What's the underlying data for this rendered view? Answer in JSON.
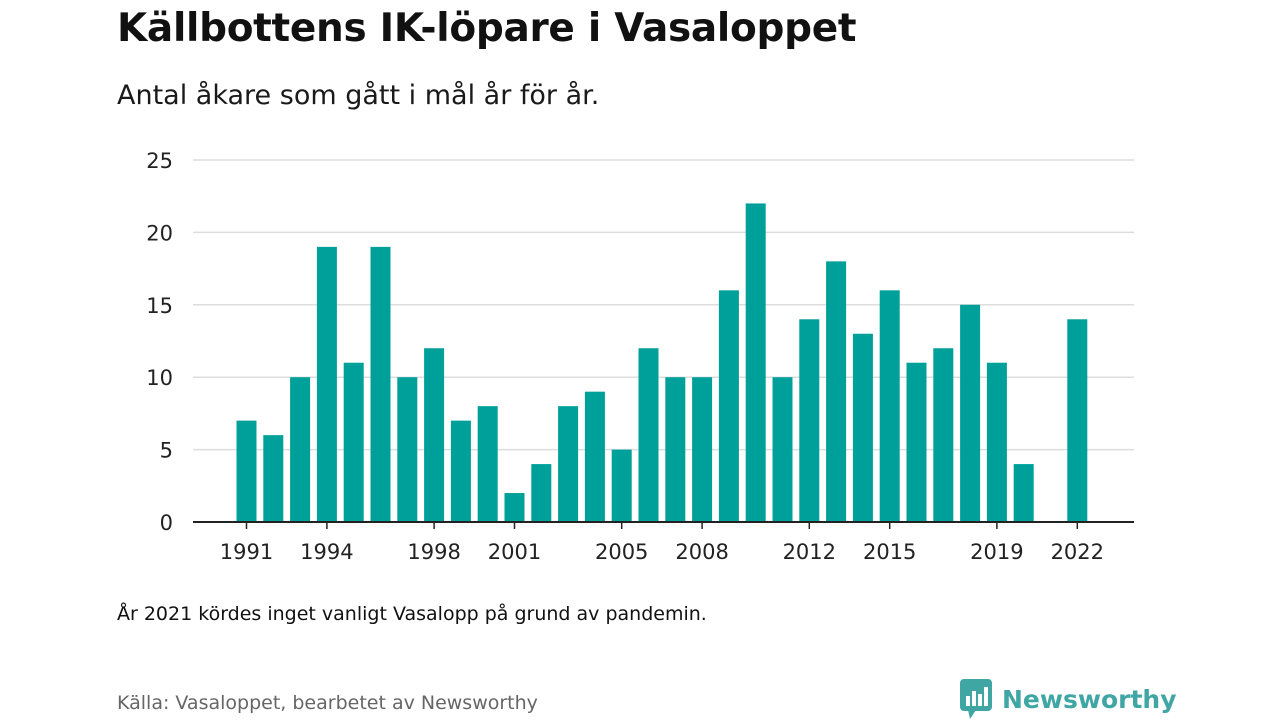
{
  "header": {
    "title": "Källbottens IK-löpare i Vasaloppet",
    "subtitle": "Antal åkare som gått i mål år för år."
  },
  "chart_data": {
    "type": "bar",
    "x": [
      1991,
      1992,
      1993,
      1994,
      1995,
      1996,
      1997,
      1998,
      1999,
      2000,
      2001,
      2002,
      2003,
      2004,
      2005,
      2006,
      2007,
      2008,
      2009,
      2010,
      2011,
      2012,
      2013,
      2014,
      2015,
      2016,
      2017,
      2018,
      2019,
      2020,
      2021,
      2022
    ],
    "values": [
      7,
      6,
      10,
      19,
      11,
      19,
      10,
      12,
      7,
      8,
      2,
      4,
      8,
      9,
      5,
      12,
      10,
      10,
      16,
      22,
      10,
      14,
      18,
      13,
      16,
      11,
      12,
      15,
      11,
      4,
      null,
      14
    ],
    "x_ticks": [
      "1991",
      "1994",
      "1998",
      "2001",
      "2005",
      "2008",
      "2012",
      "2015",
      "2019",
      "2022"
    ],
    "y_ticks": [
      "0",
      "5",
      "10",
      "15",
      "20",
      "25"
    ],
    "ylim": [
      0,
      25
    ],
    "xlabel": "",
    "ylabel": "",
    "grid": true,
    "legend": "none",
    "bar_color": "#00a09a",
    "grid_color": "#dddddd",
    "axis_color": "#222222"
  },
  "footer": {
    "note": "År 2021 kördes inget vanligt Vasalopp på grund av pandemin.",
    "source": "Källa: Vasaloppet, bearbetet av Newsworthy",
    "brand": "Newsworthy",
    "brand_color": "#3fa6a4",
    "brand_icon": "bar-chart-logo-icon"
  }
}
